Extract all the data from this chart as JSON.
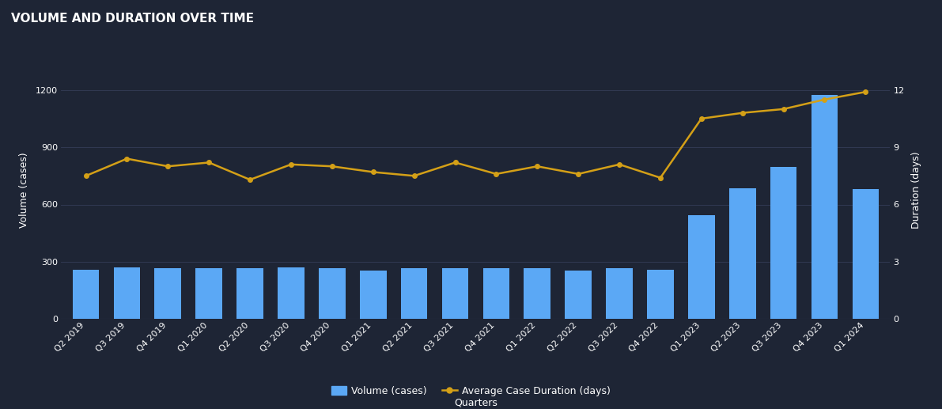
{
  "title": "VOLUME AND DURATION OVER TIME",
  "xlabel": "Quarters",
  "ylabel_left": "Volume (cases)",
  "ylabel_right": "Duration (days)",
  "background_color": "#1e2535",
  "plot_bg_color": "#1e2535",
  "grid_color": "#3a4260",
  "text_color": "#ffffff",
  "bar_color": "#5ba8f5",
  "line_color": "#d4a017",
  "categories": [
    "Q2 2019",
    "Q3 2019",
    "Q4 2019",
    "Q1 2020",
    "Q2 2020",
    "Q3 2020",
    "Q4 2020",
    "Q1 2021",
    "Q2 2021",
    "Q3 2021",
    "Q4 2021",
    "Q1 2022",
    "Q2 2022",
    "Q3 2022",
    "Q4 2022",
    "Q1 2023",
    "Q2 2023",
    "Q3 2023",
    "Q4 2023",
    "Q1 2024"
  ],
  "volumes": [
    260,
    270,
    265,
    265,
    265,
    270,
    265,
    255,
    265,
    265,
    265,
    265,
    255,
    265,
    260,
    545,
    685,
    795,
    1175,
    680
  ],
  "durations": [
    7.5,
    8.4,
    8.0,
    8.2,
    7.3,
    8.1,
    8.0,
    7.7,
    7.5,
    8.2,
    7.6,
    8.0,
    7.6,
    8.1,
    7.4,
    10.5,
    10.8,
    11.0,
    11.5,
    11.9
  ],
  "ylim_left": [
    0,
    1350
  ],
  "ylim_right": [
    0,
    13.5
  ],
  "yticks_left": [
    0,
    300,
    600,
    900,
    1200
  ],
  "yticks_right": [
    0,
    3,
    6,
    9,
    12
  ],
  "title_fontsize": 11,
  "axis_label_fontsize": 9,
  "tick_fontsize": 8,
  "legend_fontsize": 9
}
